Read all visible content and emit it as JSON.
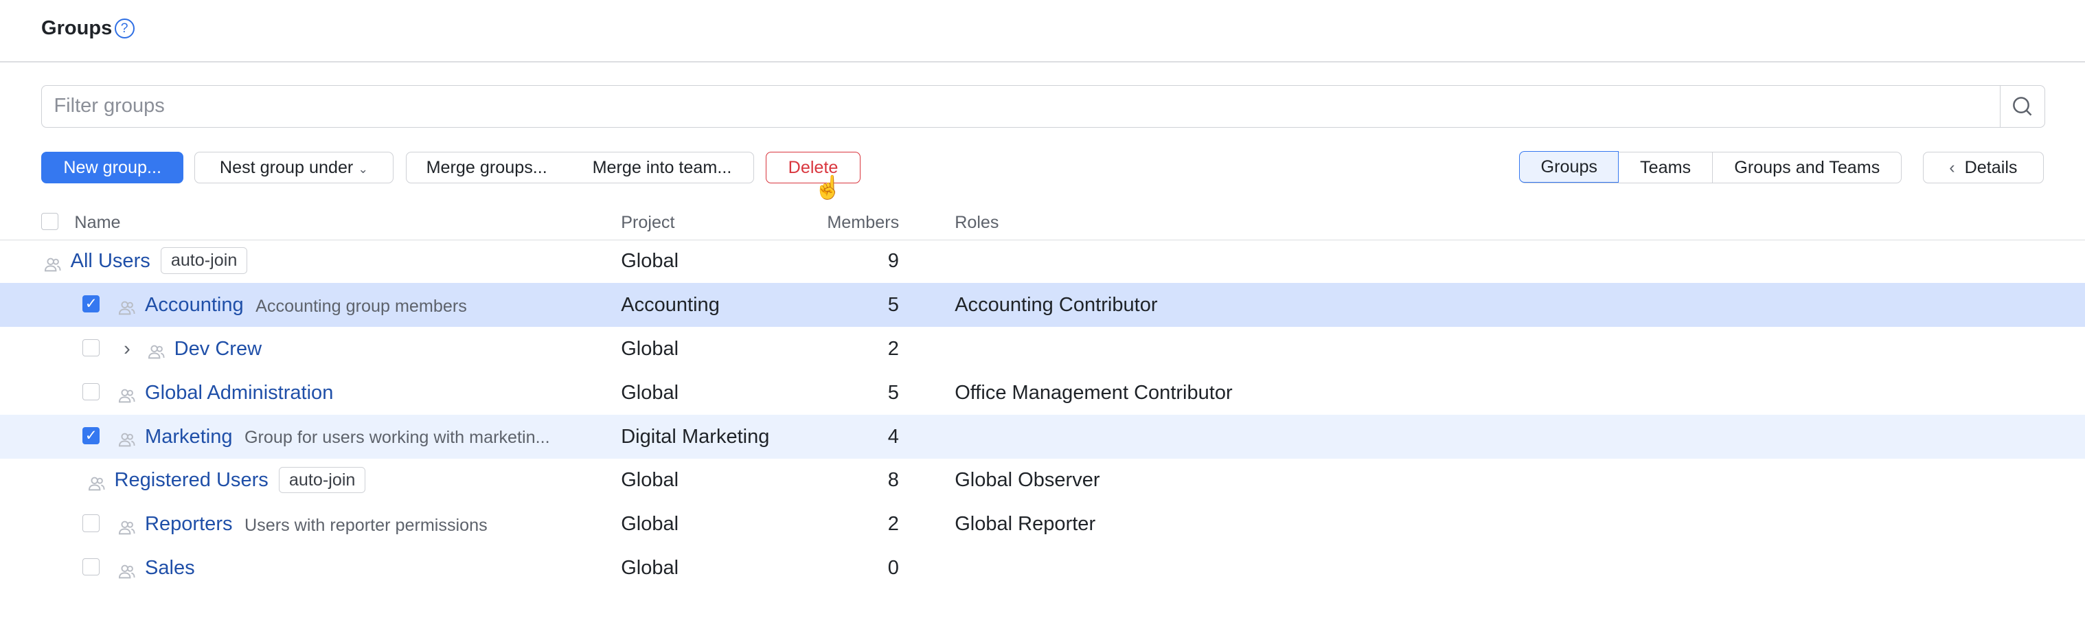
{
  "header": {
    "title": "Groups",
    "help_icon": "question-circle-icon"
  },
  "filter": {
    "placeholder": "Filter groups",
    "value": "",
    "search_icon": "search-icon"
  },
  "toolbar": {
    "new_group": "New group...",
    "nest_under": "Nest group under",
    "merge_groups": "Merge groups...",
    "merge_into_team": "Merge into team...",
    "delete": "Delete"
  },
  "view_toggle": {
    "options": [
      "Groups",
      "Teams",
      "Groups and Teams"
    ],
    "selected": "Groups"
  },
  "details_button": "Details",
  "table": {
    "columns": [
      "Name",
      "Project",
      "Members",
      "Roles"
    ],
    "rows": [
      {
        "name": "All Users",
        "badge": "auto-join",
        "description": "",
        "project": "Global",
        "members": "9",
        "roles": "",
        "level": 0,
        "checkbox": false,
        "checked": false,
        "expandable": false,
        "highlight": "none"
      },
      {
        "name": "Accounting",
        "badge": "",
        "description": "Accounting group members",
        "project": "Accounting",
        "members": "5",
        "roles": "Accounting Contributor",
        "level": 1,
        "checkbox": true,
        "checked": true,
        "expandable": false,
        "highlight": "strong"
      },
      {
        "name": "Dev Crew",
        "badge": "",
        "description": "",
        "project": "Global",
        "members": "2",
        "roles": "",
        "level": 1,
        "checkbox": true,
        "checked": false,
        "expandable": true,
        "highlight": "none"
      },
      {
        "name": "Global Administration",
        "badge": "",
        "description": "",
        "project": "Global",
        "members": "5",
        "roles": "Office Management Contributor",
        "level": 1,
        "checkbox": true,
        "checked": false,
        "expandable": false,
        "highlight": "none"
      },
      {
        "name": "Marketing",
        "badge": "",
        "description": "Group for users working with marketin...",
        "project": "Digital Marketing",
        "members": "4",
        "roles": "",
        "level": 1,
        "checkbox": true,
        "checked": true,
        "expandable": false,
        "highlight": "light"
      },
      {
        "name": "Registered Users",
        "badge": "auto-join",
        "description": "",
        "project": "Global",
        "members": "8",
        "roles": "Global Observer",
        "level": 1,
        "checkbox": false,
        "checked": false,
        "expandable": false,
        "highlight": "none"
      },
      {
        "name": "Reporters",
        "badge": "",
        "description": "Users with reporter permissions",
        "project": "Global",
        "members": "2",
        "roles": "Global Reporter",
        "level": 1,
        "checkbox": true,
        "checked": false,
        "expandable": false,
        "highlight": "none"
      },
      {
        "name": "Sales",
        "badge": "",
        "description": "",
        "project": "Global",
        "members": "0",
        "roles": "",
        "level": 1,
        "checkbox": true,
        "checked": false,
        "expandable": false,
        "highlight": "none"
      }
    ]
  },
  "colors": {
    "accent": "#3578f0",
    "danger": "#d9363e",
    "selected_row": "#d5e2fd",
    "light_row": "#ebf2fe",
    "link": "#1f4fa8"
  }
}
